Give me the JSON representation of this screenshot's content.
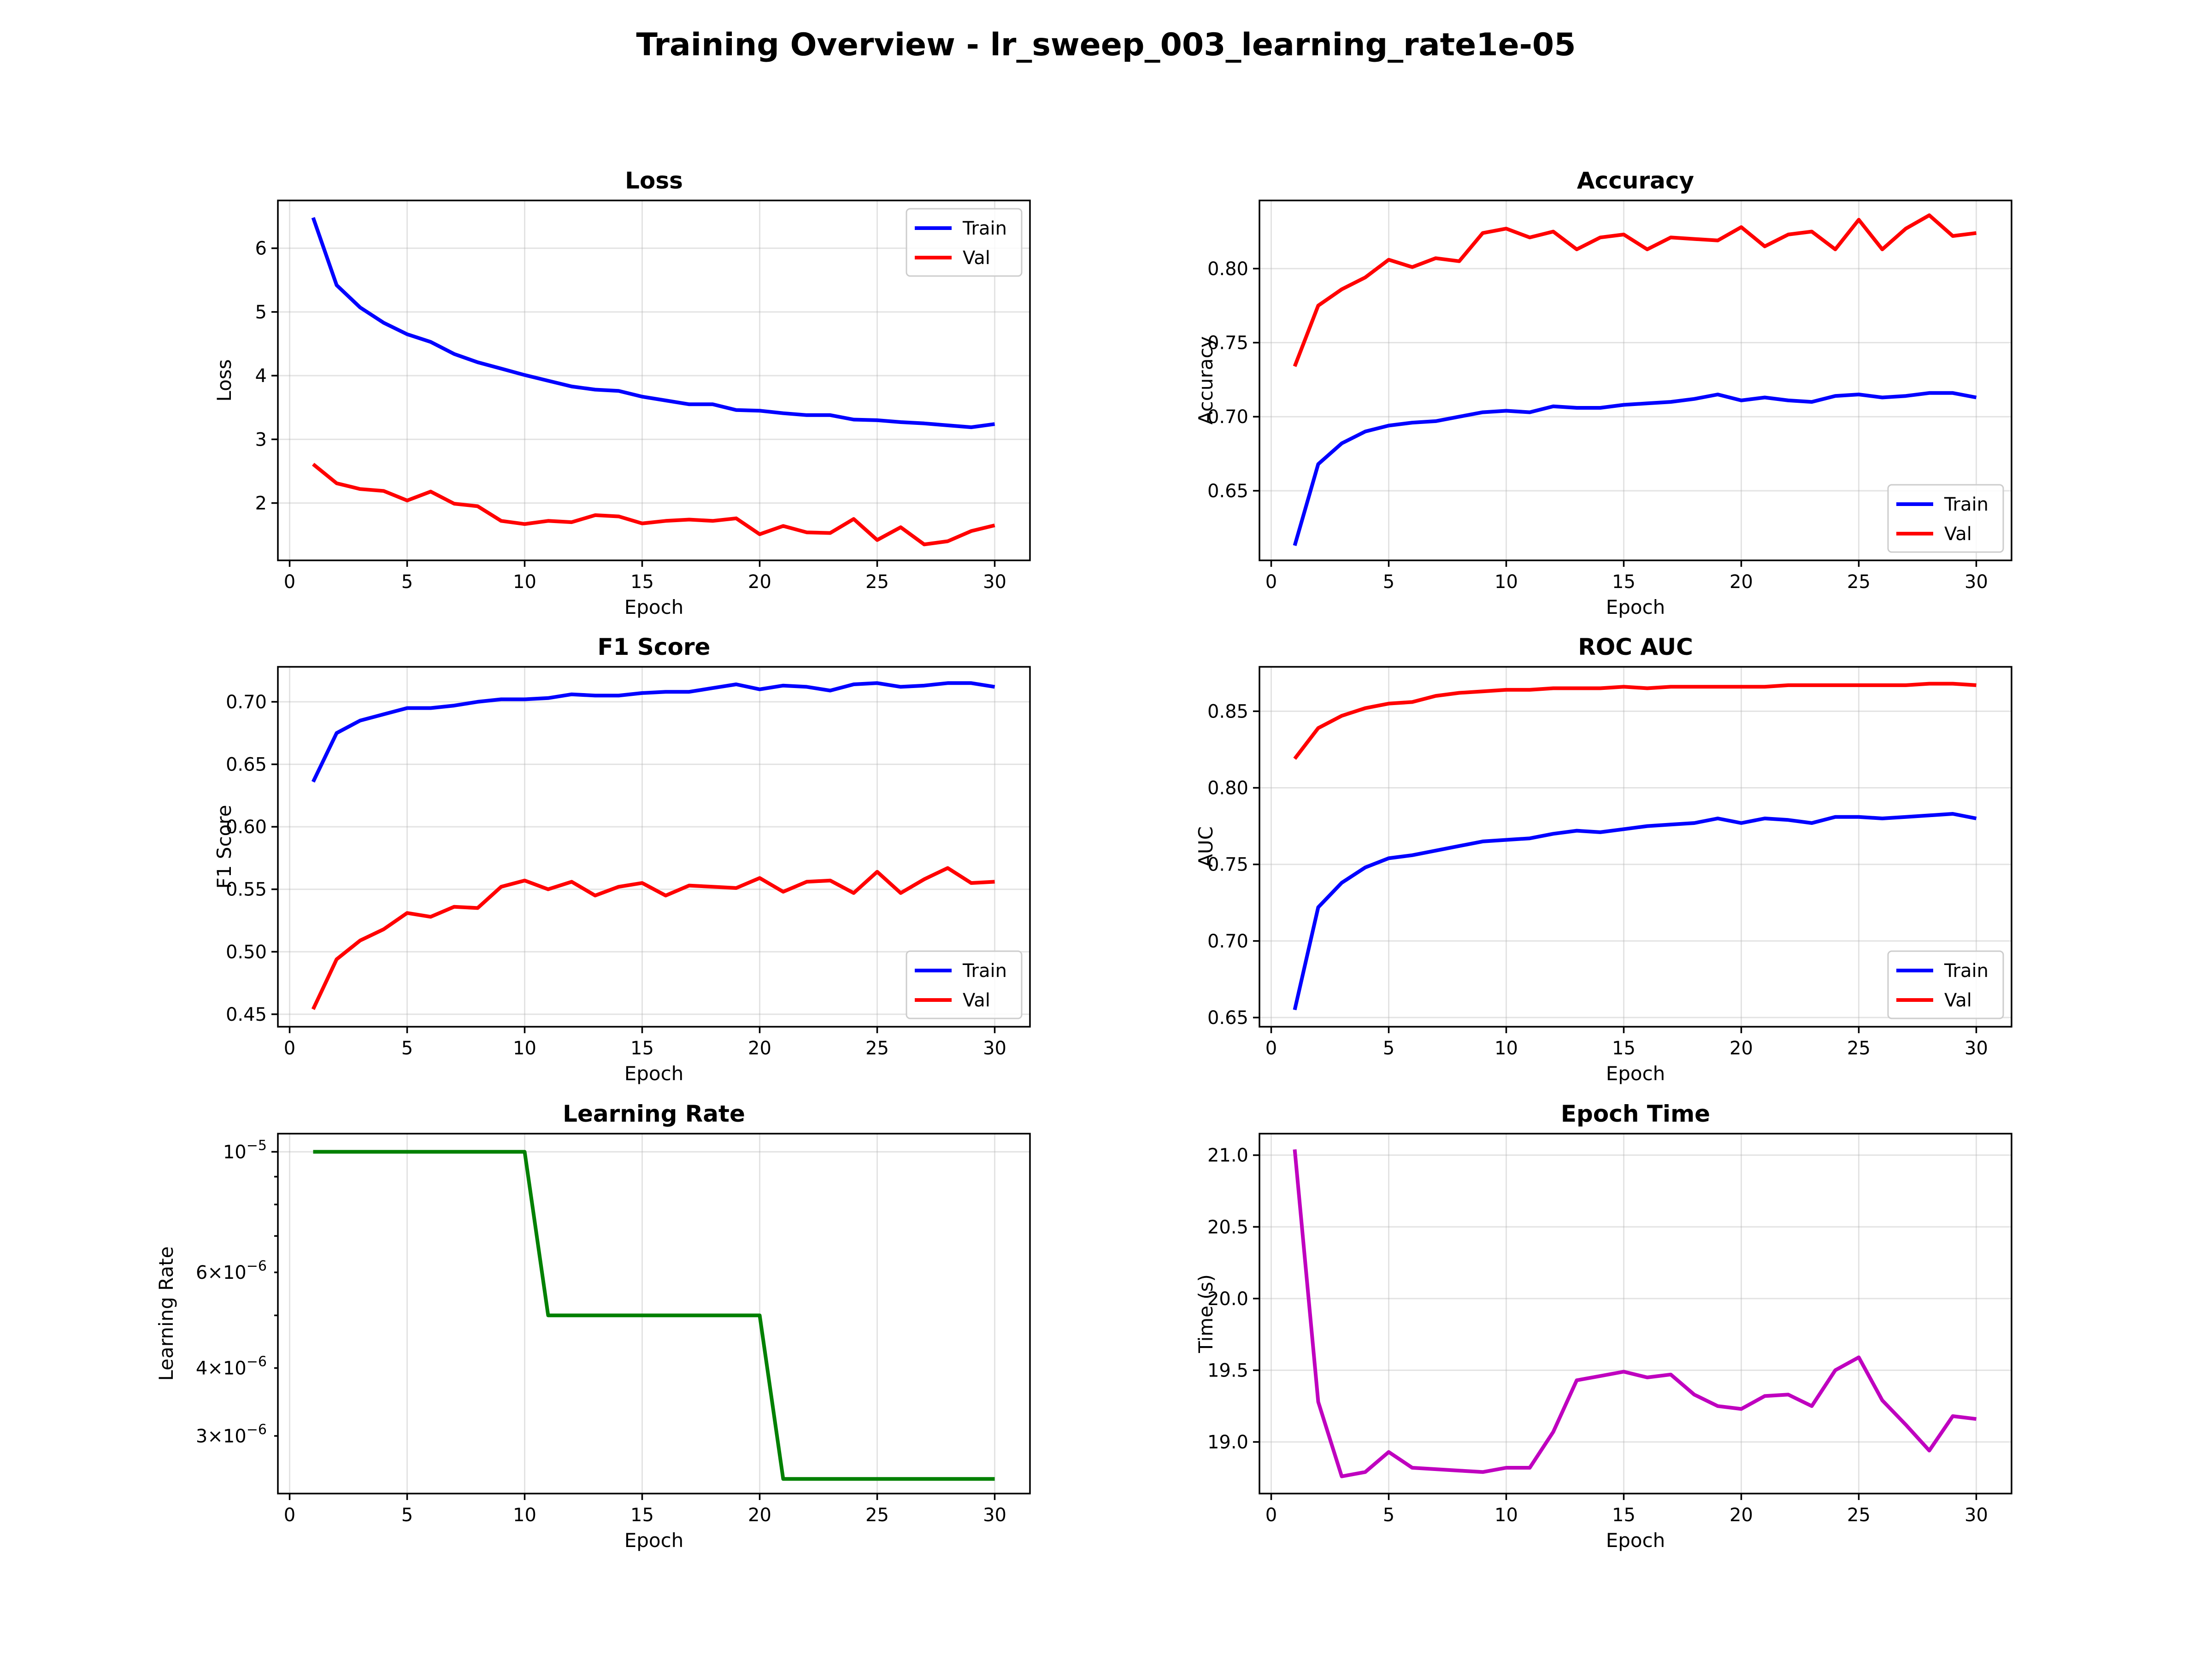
{
  "figure": {
    "title": "Training Overview - lr_sweep_003_learning_rate1e-05"
  },
  "chart_data": [
    {
      "id": "loss",
      "type": "line",
      "title": "Loss",
      "xlabel": "Epoch",
      "ylabel": "Loss",
      "xlim": [
        -0.5,
        31.5
      ],
      "ylim": [
        1.1,
        6.75
      ],
      "xticks": [
        0,
        5,
        10,
        15,
        20,
        25,
        30
      ],
      "yticks": [
        2,
        3,
        4,
        5,
        6
      ],
      "yscale": "linear",
      "grid": true,
      "legend": "upper right",
      "x": [
        1,
        2,
        3,
        4,
        5,
        6,
        7,
        8,
        9,
        10,
        11,
        12,
        13,
        14,
        15,
        16,
        17,
        18,
        19,
        20,
        21,
        22,
        23,
        24,
        25,
        26,
        27,
        28,
        29,
        30
      ],
      "series": [
        {
          "name": "Train",
          "color": "#0000ff",
          "values": [
            6.48,
            5.42,
            5.07,
            4.83,
            4.65,
            4.53,
            4.34,
            4.21,
            4.11,
            4.01,
            3.92,
            3.83,
            3.78,
            3.76,
            3.67,
            3.61,
            3.55,
            3.55,
            3.46,
            3.45,
            3.41,
            3.38,
            3.38,
            3.31,
            3.3,
            3.27,
            3.25,
            3.22,
            3.19,
            3.24
          ]
        },
        {
          "name": "Val",
          "color": "#ff0000",
          "values": [
            2.61,
            2.31,
            2.22,
            2.19,
            2.04,
            2.18,
            1.99,
            1.95,
            1.72,
            1.67,
            1.72,
            1.7,
            1.81,
            1.79,
            1.68,
            1.72,
            1.74,
            1.72,
            1.76,
            1.51,
            1.64,
            1.54,
            1.53,
            1.75,
            1.42,
            1.62,
            1.35,
            1.4,
            1.56,
            1.65
          ]
        }
      ]
    },
    {
      "id": "accuracy",
      "type": "line",
      "title": "Accuracy",
      "xlabel": "Epoch",
      "ylabel": "Accuracy",
      "xlim": [
        -0.5,
        31.5
      ],
      "ylim": [
        0.603,
        0.846
      ],
      "xticks": [
        0,
        5,
        10,
        15,
        20,
        25,
        30
      ],
      "yticks": [
        0.65,
        0.7,
        0.75,
        0.8
      ],
      "ytick_labels": [
        "0.65",
        "0.70",
        "0.75",
        "0.80"
      ],
      "yscale": "linear",
      "grid": true,
      "legend": "lower right",
      "x": [
        1,
        2,
        3,
        4,
        5,
        6,
        7,
        8,
        9,
        10,
        11,
        12,
        13,
        14,
        15,
        16,
        17,
        18,
        19,
        20,
        21,
        22,
        23,
        24,
        25,
        26,
        27,
        28,
        29,
        30
      ],
      "series": [
        {
          "name": "Train",
          "color": "#0000ff",
          "values": [
            0.613,
            0.668,
            0.682,
            0.69,
            0.694,
            0.696,
            0.697,
            0.7,
            0.703,
            0.704,
            0.703,
            0.707,
            0.706,
            0.706,
            0.708,
            0.709,
            0.71,
            0.712,
            0.715,
            0.711,
            0.713,
            0.711,
            0.71,
            0.714,
            0.715,
            0.713,
            0.714,
            0.716,
            0.716,
            0.713
          ]
        },
        {
          "name": "Val",
          "color": "#ff0000",
          "values": [
            0.734,
            0.775,
            0.786,
            0.794,
            0.806,
            0.801,
            0.807,
            0.805,
            0.824,
            0.827,
            0.821,
            0.825,
            0.813,
            0.821,
            0.823,
            0.813,
            0.821,
            0.82,
            0.819,
            0.828,
            0.815,
            0.823,
            0.825,
            0.813,
            0.833,
            0.813,
            0.827,
            0.836,
            0.822,
            0.824
          ]
        }
      ]
    },
    {
      "id": "f1",
      "type": "line",
      "title": "F1 Score",
      "xlabel": "Epoch",
      "ylabel": "F1 Score",
      "xlim": [
        -0.5,
        31.5
      ],
      "ylim": [
        0.44,
        0.728
      ],
      "xticks": [
        0,
        5,
        10,
        15,
        20,
        25,
        30
      ],
      "yticks": [
        0.45,
        0.5,
        0.55,
        0.6,
        0.65,
        0.7
      ],
      "ytick_labels": [
        "0.45",
        "0.50",
        "0.55",
        "0.60",
        "0.65",
        "0.70"
      ],
      "yscale": "linear",
      "grid": true,
      "legend": "lower right",
      "x": [
        1,
        2,
        3,
        4,
        5,
        6,
        7,
        8,
        9,
        10,
        11,
        12,
        13,
        14,
        15,
        16,
        17,
        18,
        19,
        20,
        21,
        22,
        23,
        24,
        25,
        26,
        27,
        28,
        29,
        30
      ],
      "series": [
        {
          "name": "Train",
          "color": "#0000ff",
          "values": [
            0.636,
            0.675,
            0.685,
            0.69,
            0.695,
            0.695,
            0.697,
            0.7,
            0.702,
            0.702,
            0.703,
            0.706,
            0.705,
            0.705,
            0.707,
            0.708,
            0.708,
            0.711,
            0.714,
            0.71,
            0.713,
            0.712,
            0.709,
            0.714,
            0.715,
            0.712,
            0.713,
            0.715,
            0.715,
            0.712
          ]
        },
        {
          "name": "Val",
          "color": "#ff0000",
          "values": [
            0.454,
            0.494,
            0.509,
            0.518,
            0.531,
            0.528,
            0.536,
            0.535,
            0.552,
            0.557,
            0.55,
            0.556,
            0.545,
            0.552,
            0.555,
            0.545,
            0.553,
            0.552,
            0.551,
            0.559,
            0.548,
            0.556,
            0.557,
            0.547,
            0.564,
            0.547,
            0.558,
            0.567,
            0.555,
            0.556
          ]
        }
      ]
    },
    {
      "id": "roc_auc",
      "type": "line",
      "title": "ROC AUC",
      "xlabel": "Epoch",
      "ylabel": "AUC",
      "xlim": [
        -0.5,
        31.5
      ],
      "ylim": [
        0.644,
        0.879
      ],
      "xticks": [
        0,
        5,
        10,
        15,
        20,
        25,
        30
      ],
      "yticks": [
        0.65,
        0.7,
        0.75,
        0.8,
        0.85
      ],
      "ytick_labels": [
        "0.65",
        "0.70",
        "0.75",
        "0.80",
        "0.85"
      ],
      "yscale": "linear",
      "grid": true,
      "legend": "lower right",
      "x": [
        1,
        2,
        3,
        4,
        5,
        6,
        7,
        8,
        9,
        10,
        11,
        12,
        13,
        14,
        15,
        16,
        17,
        18,
        19,
        20,
        21,
        22,
        23,
        24,
        25,
        26,
        27,
        28,
        29,
        30
      ],
      "series": [
        {
          "name": "Train",
          "color": "#0000ff",
          "values": [
            0.655,
            0.722,
            0.738,
            0.748,
            0.754,
            0.756,
            0.759,
            0.762,
            0.765,
            0.766,
            0.767,
            0.77,
            0.772,
            0.771,
            0.773,
            0.775,
            0.776,
            0.777,
            0.78,
            0.777,
            0.78,
            0.779,
            0.777,
            0.781,
            0.781,
            0.78,
            0.781,
            0.782,
            0.783,
            0.78
          ]
        },
        {
          "name": "Val",
          "color": "#ff0000",
          "values": [
            0.819,
            0.839,
            0.847,
            0.852,
            0.855,
            0.856,
            0.86,
            0.862,
            0.863,
            0.864,
            0.864,
            0.865,
            0.865,
            0.865,
            0.866,
            0.865,
            0.866,
            0.866,
            0.866,
            0.866,
            0.866,
            0.867,
            0.867,
            0.867,
            0.867,
            0.867,
            0.867,
            0.868,
            0.868,
            0.867
          ]
        }
      ]
    },
    {
      "id": "learning_rate",
      "type": "line",
      "title": "Learning Rate",
      "xlabel": "Epoch",
      "ylabel": "Learning Rate",
      "xlim": [
        -0.5,
        31.5
      ],
      "ylim": [
        2.35e-06,
        1.08e-05
      ],
      "xticks": [
        0,
        5,
        10,
        15,
        20,
        25,
        30
      ],
      "yscale": "log",
      "yticks_major": [
        1e-05
      ],
      "ytick_labels_major": [
        {
          "base": "10",
          "exp": "−5"
        }
      ],
      "yticks_minor": [
        3e-06,
        4e-06,
        5e-06,
        6e-06,
        7e-06,
        8e-06,
        9e-06
      ],
      "ytick_labels_minor": {
        "3e-06": {
          "mant": "3",
          "base": "10",
          "exp": "−6"
        },
        "4e-06": {
          "mant": "4",
          "base": "10",
          "exp": "−6"
        },
        "6e-06": {
          "mant": "6",
          "base": "10",
          "exp": "−6"
        }
      },
      "grid": true,
      "legend": "none",
      "x": [
        1,
        2,
        3,
        4,
        5,
        6,
        7,
        8,
        9,
        10,
        11,
        12,
        13,
        14,
        15,
        16,
        17,
        18,
        19,
        20,
        21,
        22,
        23,
        24,
        25,
        26,
        27,
        28,
        29,
        30
      ],
      "series": [
        {
          "color": "#008000",
          "values": [
            1e-05,
            1e-05,
            1e-05,
            1e-05,
            1e-05,
            1e-05,
            1e-05,
            1e-05,
            1e-05,
            1e-05,
            5e-06,
            5e-06,
            5e-06,
            5e-06,
            5e-06,
            5e-06,
            5e-06,
            5e-06,
            5e-06,
            5e-06,
            2.5e-06,
            2.5e-06,
            2.5e-06,
            2.5e-06,
            2.5e-06,
            2.5e-06,
            2.5e-06,
            2.5e-06,
            2.5e-06,
            2.5e-06
          ]
        }
      ]
    },
    {
      "id": "epoch_time",
      "type": "line",
      "title": "Epoch Time",
      "xlabel": "Epoch",
      "ylabel": "Time (s)",
      "xlim": [
        -0.5,
        31.5
      ],
      "ylim": [
        18.64,
        21.15
      ],
      "xticks": [
        0,
        5,
        10,
        15,
        20,
        25,
        30
      ],
      "yticks": [
        19.0,
        19.5,
        20.0,
        20.5,
        21.0
      ],
      "ytick_labels": [
        "19.0",
        "19.5",
        "20.0",
        "20.5",
        "21.0"
      ],
      "yscale": "linear",
      "grid": true,
      "legend": "none",
      "x": [
        1,
        2,
        3,
        4,
        5,
        6,
        7,
        8,
        9,
        10,
        11,
        12,
        13,
        14,
        15,
        16,
        17,
        18,
        19,
        20,
        21,
        22,
        23,
        24,
        25,
        26,
        27,
        28,
        29,
        30
      ],
      "series": [
        {
          "color": "#bf00bf",
          "values": [
            21.04,
            19.28,
            18.76,
            18.79,
            18.93,
            18.82,
            18.81,
            18.8,
            18.79,
            18.82,
            18.82,
            19.07,
            19.43,
            19.46,
            19.49,
            19.45,
            19.47,
            19.33,
            19.25,
            19.23,
            19.32,
            19.33,
            19.25,
            19.5,
            19.59,
            19.29,
            19.12,
            18.94,
            19.18,
            19.16
          ]
        }
      ]
    }
  ]
}
